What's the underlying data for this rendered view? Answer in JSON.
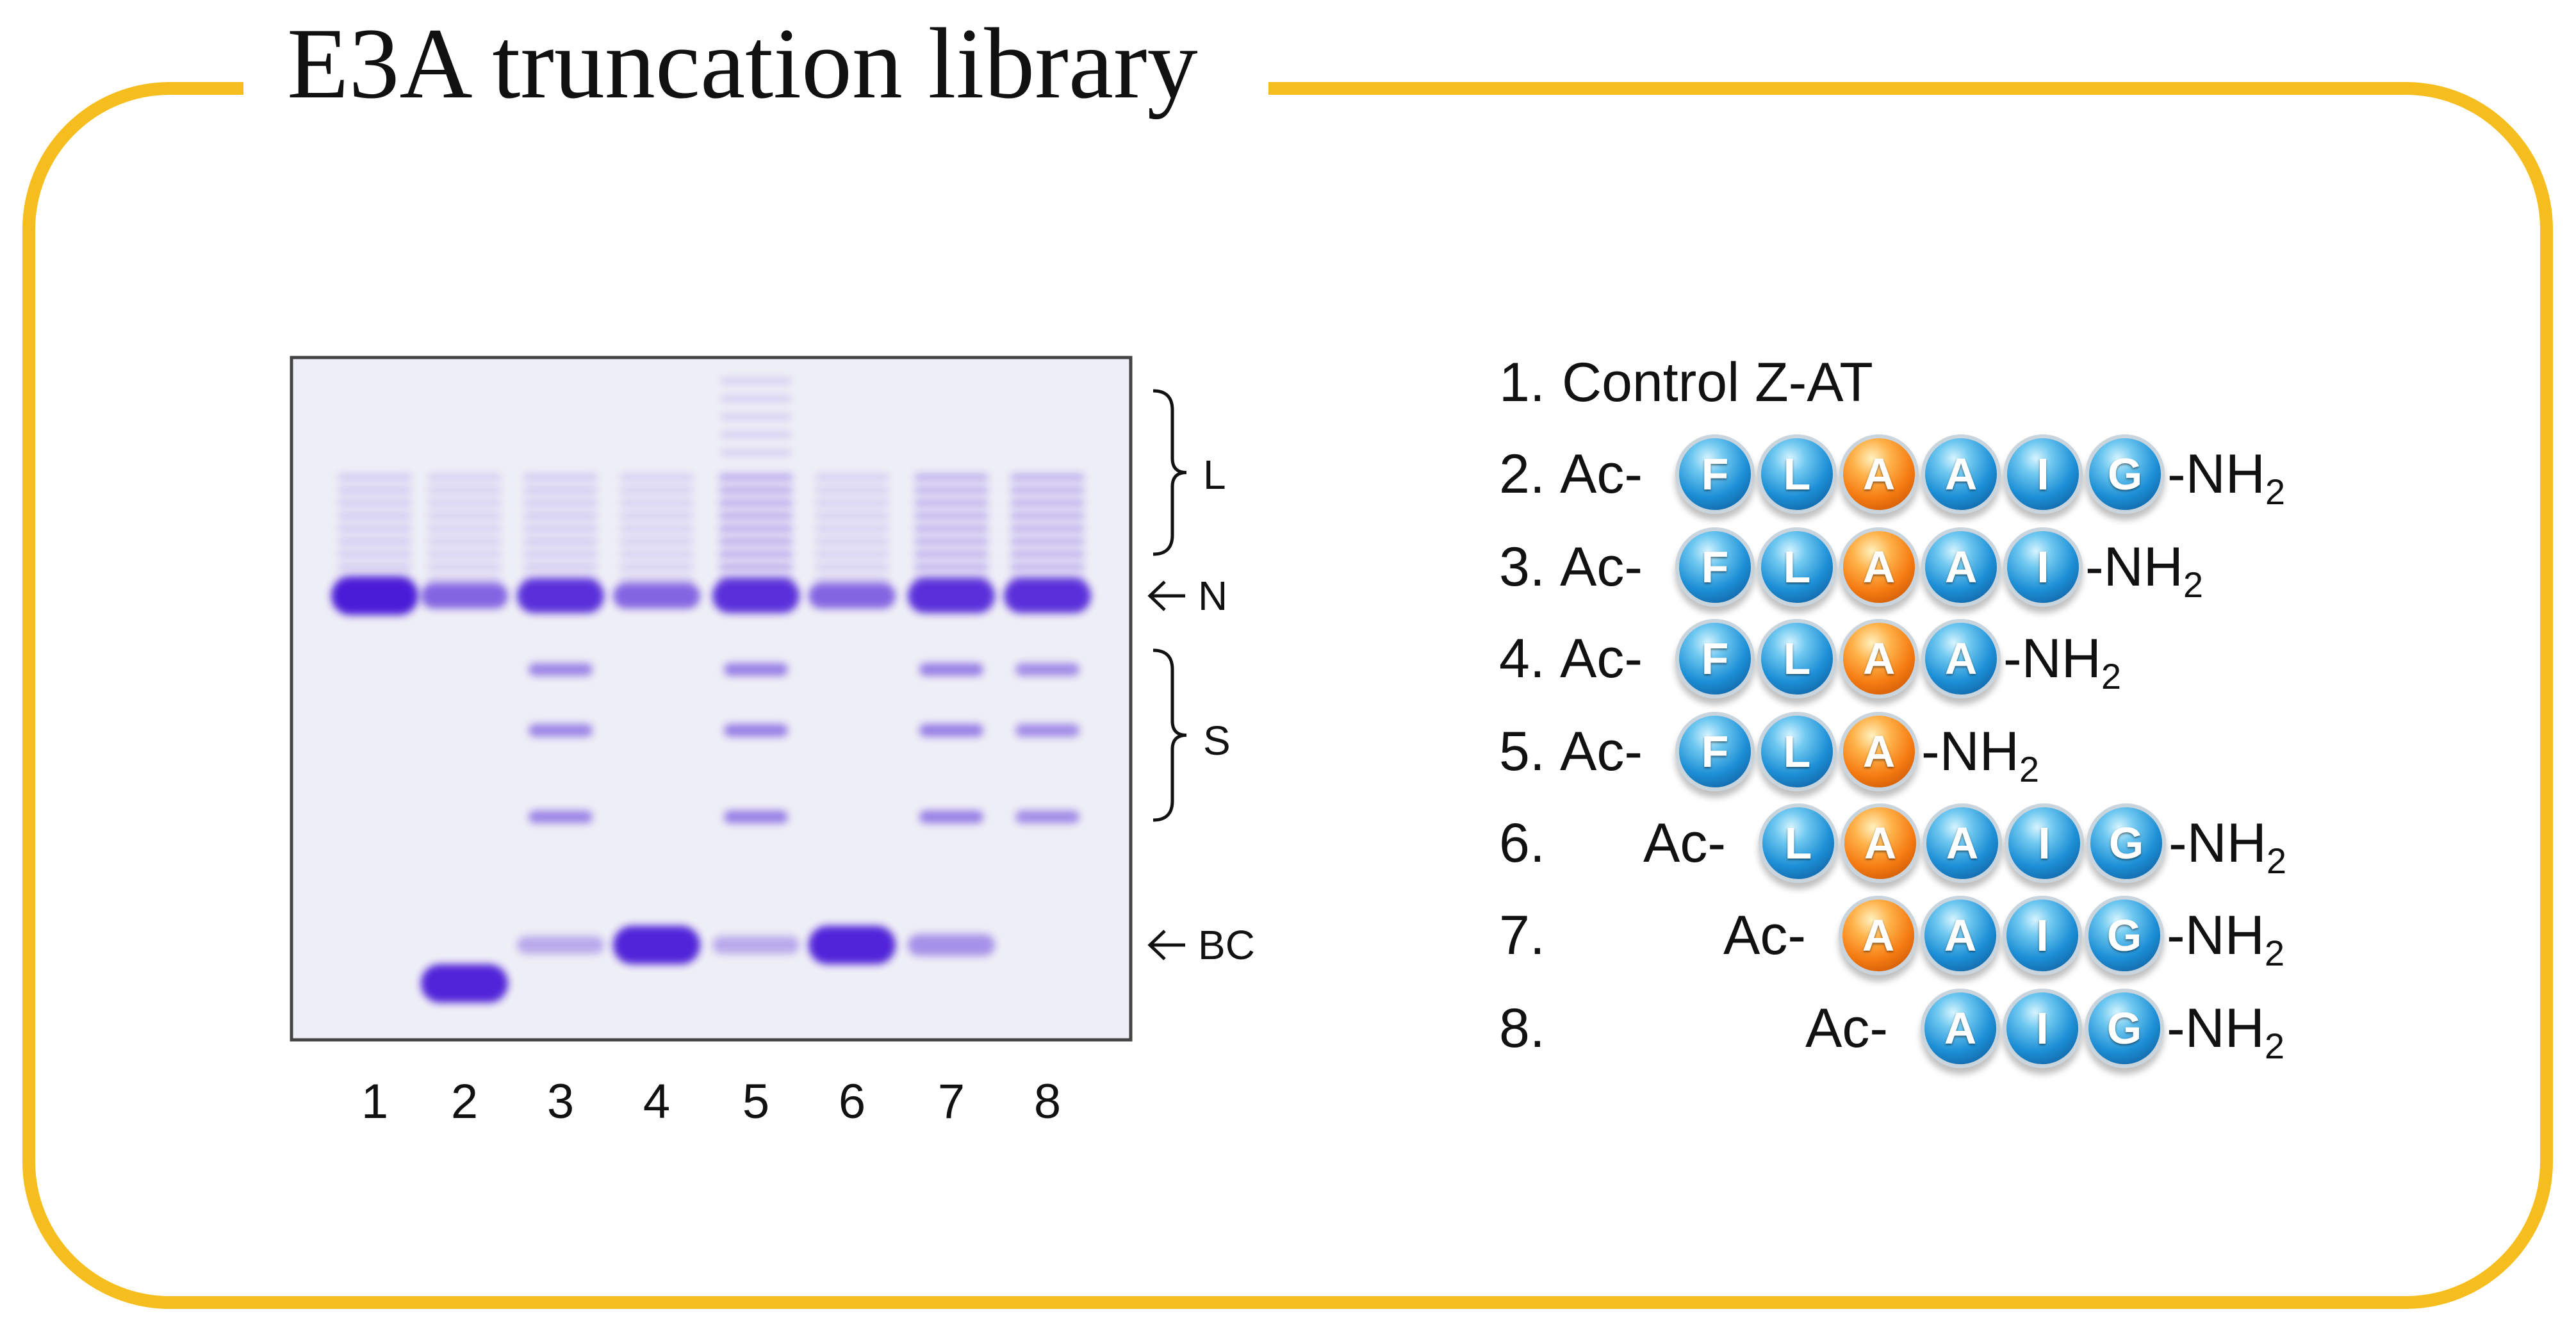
{
  "title": "E3A truncation library",
  "colors": {
    "frame": "#f5bd1e",
    "gel_background": "#eeeef6",
    "band": "#4b1fd8",
    "residue_blue": "#1d8fd6",
    "residue_orange": "#f57b12"
  },
  "gel": {
    "lane_labels": [
      "1",
      "2",
      "3",
      "4",
      "5",
      "6",
      "7",
      "8"
    ],
    "markers": [
      {
        "label": "L",
        "kind": "bracket"
      },
      {
        "label": "N",
        "kind": "arrow"
      },
      {
        "label": "S",
        "kind": "bracket"
      },
      {
        "label": "BC",
        "kind": "arrow"
      }
    ],
    "lanes": [
      {
        "lane": "1",
        "bands": [
          {
            "label": "N",
            "intensity": 1.0
          },
          {
            "label": "L",
            "intensity": 0.15
          }
        ]
      },
      {
        "lane": "2",
        "bands": [
          {
            "label": "N",
            "intensity": 0.5
          },
          {
            "label": "L",
            "intensity": 0.1
          },
          {
            "label": "BC",
            "intensity": 0.95
          }
        ]
      },
      {
        "lane": "3",
        "bands": [
          {
            "label": "N",
            "intensity": 0.85
          },
          {
            "label": "L",
            "intensity": 0.15
          },
          {
            "label": "S",
            "intensity": 0.5
          },
          {
            "label": "BC",
            "intensity": 0.15
          }
        ]
      },
      {
        "lane": "4",
        "bands": [
          {
            "label": "N",
            "intensity": 0.5
          },
          {
            "label": "L",
            "intensity": 0.1
          },
          {
            "label": "BC",
            "intensity": 0.95
          }
        ]
      },
      {
        "lane": "5",
        "bands": [
          {
            "label": "N",
            "intensity": 0.85
          },
          {
            "label": "L",
            "intensity": 0.45
          },
          {
            "label": "S",
            "intensity": 0.55
          },
          {
            "label": "BC",
            "intensity": 0.15
          }
        ]
      },
      {
        "lane": "6",
        "bands": [
          {
            "label": "N",
            "intensity": 0.5
          },
          {
            "label": "L",
            "intensity": 0.1
          },
          {
            "label": "BC",
            "intensity": 0.95
          }
        ]
      },
      {
        "lane": "7",
        "bands": [
          {
            "label": "N",
            "intensity": 0.85
          },
          {
            "label": "L",
            "intensity": 0.4
          },
          {
            "label": "S",
            "intensity": 0.55
          },
          {
            "label": "BC",
            "intensity": 0.3
          }
        ]
      },
      {
        "lane": "8",
        "bands": [
          {
            "label": "N",
            "intensity": 0.85
          },
          {
            "label": "L",
            "intensity": 0.4
          },
          {
            "label": "S",
            "intensity": 0.45
          }
        ]
      }
    ]
  },
  "peptides": [
    {
      "number": "1.",
      "prefix": "Control Z-AT",
      "residues": [],
      "suffix": "",
      "suffix_sub": ""
    },
    {
      "number": "2.",
      "prefix": "Ac-",
      "residues": [
        "F",
        "L",
        "A",
        "A",
        "I",
        "G"
      ],
      "suffix": "-NH",
      "suffix_sub": "2"
    },
    {
      "number": "3.",
      "prefix": "Ac-",
      "residues": [
        "F",
        "L",
        "A",
        "A",
        "I"
      ],
      "suffix": "-NH",
      "suffix_sub": "2"
    },
    {
      "number": "4.",
      "prefix": "Ac-",
      "residues": [
        "F",
        "L",
        "A",
        "A"
      ],
      "suffix": "-NH",
      "suffix_sub": "2"
    },
    {
      "number": "5.",
      "prefix": "Ac-",
      "residues": [
        "F",
        "L",
        "A"
      ],
      "suffix": "-NH",
      "suffix_sub": "2"
    },
    {
      "number": "6.",
      "prefix": "Ac-",
      "residues": [
        "L",
        "A",
        "A",
        "I",
        "G"
      ],
      "suffix": "-NH",
      "suffix_sub": "2"
    },
    {
      "number": "7.",
      "prefix": "Ac-",
      "residues": [
        "A",
        "A",
        "I",
        "G"
      ],
      "suffix": "-NH",
      "suffix_sub": "2"
    },
    {
      "number": "8.",
      "prefix": "Ac-",
      "residues": [
        "A",
        "I",
        "G"
      ],
      "suffix": "-NH",
      "suffix_sub": "2"
    }
  ]
}
